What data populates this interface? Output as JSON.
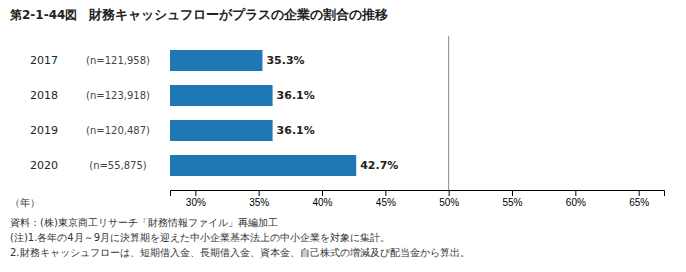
{
  "chart_data": {
    "type": "bar",
    "orientation": "horizontal",
    "title_label": "第2-1-44図",
    "title": "財務キャッシュフローがプラスの企業の割合の推移",
    "categories": [
      "2017",
      "2018",
      "2019",
      "2020"
    ],
    "n_labels": [
      "(n=121,958)",
      "(n=123,918)",
      "(n=120,487)",
      "(n=55,875)"
    ],
    "values": [
      35.3,
      36.1,
      36.1,
      42.7
    ],
    "value_labels": [
      "35.3%",
      "36.1%",
      "36.1%",
      "42.7%"
    ],
    "data_labels": true,
    "xlim": [
      28,
      67
    ],
    "xticks": [
      {
        "value": 30,
        "label": "30%"
      },
      {
        "value": 35,
        "label": "35%"
      },
      {
        "value": 40,
        "label": "40%"
      },
      {
        "value": 45,
        "label": "45%"
      },
      {
        "value": 50,
        "label": "50%"
      },
      {
        "value": 55,
        "label": "55%"
      },
      {
        "value": 60,
        "label": "60%"
      },
      {
        "value": 65,
        "label": "65%"
      }
    ],
    "reference_line": 50,
    "ylabel": "（年）",
    "grid": false,
    "notes": [
      "資料：(株)東京商工リサーチ「財務情報ファイル」再編加工",
      "(注)1.各年の4月～9月に決算期を迎えた中小企業基本法上の中小企業を対象に集計。",
      "2.財務キャッシュフローは、短期借入金、長期借入金、資本金、自己株式の増減及び配当金から算出。"
    ]
  }
}
